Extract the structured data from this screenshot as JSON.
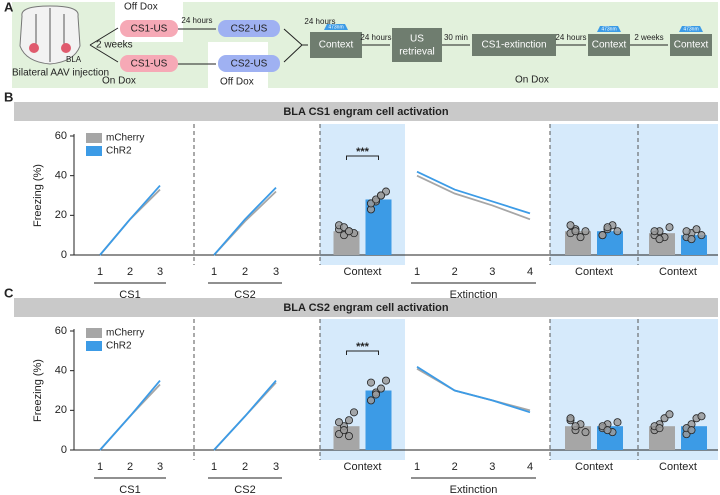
{
  "panel_a": {
    "label": "A",
    "injection": "Bilateral AAV injection",
    "region": "BLA",
    "delay": "2 weeks",
    "off_dox": [
      "Off Dox",
      "Off Dox"
    ],
    "on_dox": [
      "On Dox",
      "On Dox"
    ],
    "cs_us": [
      "CS1-US",
      "CS2-US",
      "CS1-US",
      "CS2-US"
    ],
    "intervals": [
      "24 hours",
      "24 hours",
      "24 hours",
      "30 min",
      "24 hours",
      "2 weeks"
    ],
    "steps": [
      "Context",
      [
        "US",
        "retrieval"
      ],
      "CS1-extinction",
      "Context",
      "Context"
    ],
    "laser": [
      "473nm",
      "473nm",
      "473nm"
    ]
  },
  "chart_data": [
    {
      "type": "mixed",
      "label": "B",
      "title": "BLA CS1 engram cell activation",
      "ylabel": "Freezing (%)",
      "ylim": [
        0,
        60
      ],
      "yticks": [
        0,
        20,
        40,
        60
      ],
      "series": [
        {
          "name": "mCherry",
          "color": "#a6a6a6"
        },
        {
          "name": "ChR2",
          "color": "#3c9be6"
        }
      ],
      "sessions": [
        {
          "label": "CS1",
          "kind": "line",
          "highlight": false,
          "categories": [
            "1",
            "2",
            "3"
          ],
          "values": [
            [
              0,
              18,
              33
            ],
            [
              0,
              18,
              35
            ]
          ]
        },
        {
          "label": "CS2",
          "kind": "line",
          "highlight": false,
          "categories": [
            "1",
            "2",
            "3"
          ],
          "values": [
            [
              0,
              17,
              32
            ],
            [
              0,
              18,
              34
            ]
          ]
        },
        {
          "label": "Context",
          "kind": "bar",
          "highlight": true,
          "annotation": "***",
          "values": [
            12,
            28
          ],
          "points": [
            [
              13,
              10,
              12,
              11,
              15,
              14,
              12
            ],
            [
              23,
              27,
              30,
              32,
              26,
              28,
              30
            ]
          ]
        },
        {
          "label": "Extinction",
          "kind": "line",
          "highlight": false,
          "categories": [
            "1",
            "2",
            "3",
            "4"
          ],
          "values": [
            [
              40,
              31,
              25,
              18
            ],
            [
              42,
              33,
              27,
              21
            ]
          ]
        },
        {
          "label": "Context",
          "kind": "bar",
          "highlight": true,
          "values": [
            12,
            12
          ],
          "points": [
            [
              11,
              13,
              9,
              12,
              15,
              12
            ],
            [
              10,
              13,
              15,
              12,
              10,
              14
            ]
          ]
        },
        {
          "label": "Context",
          "kind": "bar",
          "highlight": true,
          "values": [
            11,
            10
          ],
          "points": [
            [
              10,
              12,
              9,
              14,
              12,
              8
            ],
            [
              9,
              11,
              13,
              10,
              12,
              8
            ]
          ]
        }
      ]
    },
    {
      "type": "mixed",
      "label": "C",
      "title": "BLA CS2 engram cell activation",
      "ylabel": "Freezing (%)",
      "ylim": [
        0,
        60
      ],
      "yticks": [
        0,
        20,
        40,
        60
      ],
      "series": [
        {
          "name": "mCherry",
          "color": "#a6a6a6"
        },
        {
          "name": "ChR2",
          "color": "#3c9be6"
        }
      ],
      "sessions": [
        {
          "label": "CS1",
          "kind": "line",
          "highlight": false,
          "categories": [
            "1",
            "2",
            "3"
          ],
          "values": [
            [
              0,
              17,
              33
            ],
            [
              0,
              17,
              35
            ]
          ]
        },
        {
          "label": "CS2",
          "kind": "line",
          "highlight": false,
          "categories": [
            "1",
            "2",
            "3"
          ],
          "values": [
            [
              0,
              17,
              34
            ],
            [
              0,
              17,
              35
            ]
          ]
        },
        {
          "label": "Context",
          "kind": "bar",
          "highlight": true,
          "annotation": "***",
          "values": [
            12,
            30
          ],
          "points": [
            [
              8,
              12,
              15,
              19,
              14,
              10,
              7
            ],
            [
              25,
              29,
              31,
              35,
              34,
              28
            ]
          ]
        },
        {
          "label": "Extinction",
          "kind": "line",
          "highlight": false,
          "categories": [
            "1",
            "2",
            "3",
            "4"
          ],
          "values": [
            [
              41,
              30,
              25,
              20
            ],
            [
              42,
              30,
              25,
              19
            ]
          ]
        },
        {
          "label": "Context",
          "kind": "bar",
          "highlight": true,
          "values": [
            12,
            12
          ],
          "points": [
            [
              15,
              10,
              13,
              9,
              16,
              12
            ],
            [
              11,
              13,
              9,
              14,
              12,
              10
            ]
          ]
        },
        {
          "label": "Context",
          "kind": "bar",
          "highlight": true,
          "values": [
            12,
            12
          ],
          "points": [
            [
              10,
              13,
              16,
              18,
              12,
              11
            ],
            [
              8,
              13,
              16,
              17,
              11,
              10
            ]
          ]
        }
      ]
    }
  ]
}
